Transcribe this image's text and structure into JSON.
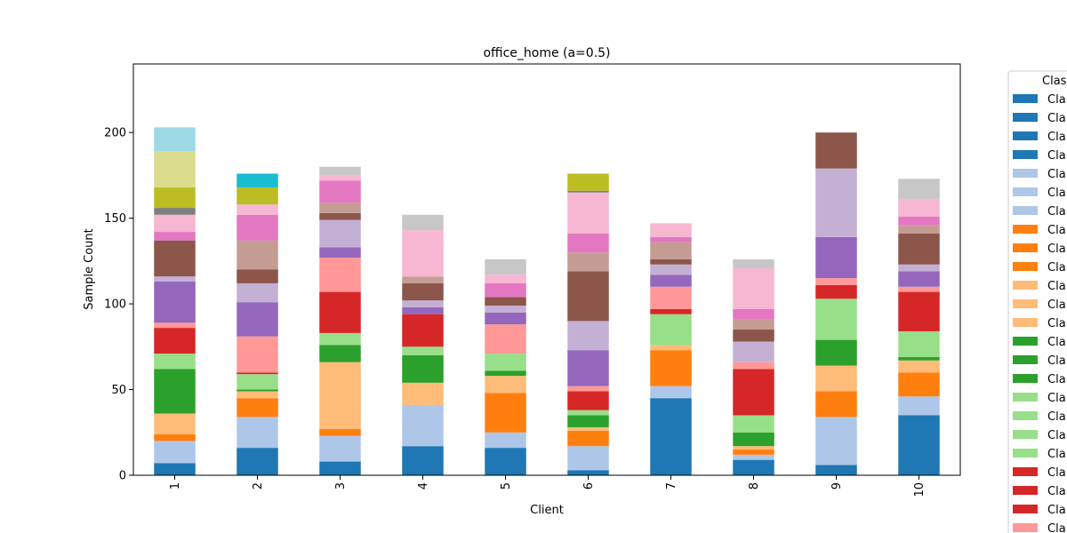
{
  "chart_data": {
    "type": "bar",
    "stacked": true,
    "title": "office_home (a=0.5)",
    "xlabel": "Client",
    "ylabel": "Sample Count",
    "ylim": [
      0,
      240
    ],
    "yticks": [
      0,
      50,
      100,
      150,
      200
    ],
    "categories": [
      "1",
      "2",
      "3",
      "4",
      "5",
      "6",
      "7",
      "8",
      "9",
      "10"
    ],
    "legend": {
      "title": "Clas",
      "position": "right-outside",
      "entries": [
        {
          "label": "Cla",
          "color": "#1f77b4"
        },
        {
          "label": "Cla",
          "color": "#1f77b4"
        },
        {
          "label": "Cla",
          "color": "#1f77b4"
        },
        {
          "label": "Cla",
          "color": "#1f77b4"
        },
        {
          "label": "Cla",
          "color": "#aec7e8"
        },
        {
          "label": "Cla",
          "color": "#aec7e8"
        },
        {
          "label": "Cla",
          "color": "#aec7e8"
        },
        {
          "label": "Cla",
          "color": "#ff7f0e"
        },
        {
          "label": "Cla",
          "color": "#ff7f0e"
        },
        {
          "label": "Cla",
          "color": "#ff7f0e"
        },
        {
          "label": "Cla",
          "color": "#ffbb78"
        },
        {
          "label": "Cla",
          "color": "#ffbb78"
        },
        {
          "label": "Cla",
          "color": "#ffbb78"
        },
        {
          "label": "Cla",
          "color": "#2ca02c"
        },
        {
          "label": "Cla",
          "color": "#2ca02c"
        },
        {
          "label": "Cla",
          "color": "#2ca02c"
        },
        {
          "label": "Cla",
          "color": "#98df8a"
        },
        {
          "label": "Cla",
          "color": "#98df8a"
        },
        {
          "label": "Cla",
          "color": "#98df8a"
        },
        {
          "label": "Cla",
          "color": "#98df8a"
        },
        {
          "label": "Cla",
          "color": "#d62728"
        },
        {
          "label": "Cla",
          "color": "#d62728"
        },
        {
          "label": "Cla",
          "color": "#d62728"
        },
        {
          "label": "Cla",
          "color": "#ff9896"
        }
      ]
    },
    "segment_colors": [
      "#1f77b4",
      "#aec7e8",
      "#ff7f0e",
      "#ffbb78",
      "#2ca02c",
      "#98df8a",
      "#d62728",
      "#ff9896",
      "#9467bd",
      "#c5b0d5",
      "#8c564b",
      "#c49c94",
      "#e377c2",
      "#f7b6d2",
      "#7f7f7f",
      "#c7c7c7",
      "#bcbd22",
      "#dbdb8d",
      "#17becf",
      "#9edae5"
    ],
    "series": [
      {
        "values": [
          7,
          16,
          8,
          17,
          16,
          3,
          45,
          9,
          6,
          35
        ]
      },
      {
        "values": [
          13,
          18,
          15,
          24,
          9,
          14,
          7,
          3,
          28,
          11
        ]
      },
      {
        "values": [
          4,
          11,
          4,
          0,
          23,
          9,
          21,
          3,
          15,
          14
        ]
      },
      {
        "values": [
          12,
          4,
          39,
          13,
          10,
          2,
          3,
          2,
          15,
          7
        ]
      },
      {
        "values": [
          26,
          1,
          10,
          16,
          3,
          7,
          0,
          8,
          15,
          2
        ]
      },
      {
        "values": [
          9,
          9,
          7,
          5,
          10,
          3,
          18,
          10,
          24,
          15
        ]
      },
      {
        "values": [
          15,
          1,
          24,
          19,
          0,
          11,
          3,
          27,
          8,
          23
        ]
      },
      {
        "values": [
          3,
          21,
          20,
          0,
          17,
          3,
          13,
          4,
          4,
          3
        ]
      },
      {
        "values": [
          24,
          20,
          6,
          4,
          7,
          21,
          7,
          0,
          24,
          9
        ]
      },
      {
        "values": [
          3,
          11,
          16,
          4,
          4,
          17,
          6,
          12,
          40,
          4
        ]
      },
      {
        "values": [
          21,
          8,
          4,
          10,
          5,
          29,
          3,
          7,
          21,
          18
        ]
      },
      {
        "values": [
          0,
          17,
          6,
          4,
          0,
          11,
          10,
          6,
          0,
          5
        ]
      },
      {
        "values": [
          5,
          15,
          13,
          0,
          8,
          11,
          3,
          6,
          0,
          5
        ]
      },
      {
        "values": [
          10,
          6,
          3,
          27,
          5,
          24,
          8,
          24,
          0,
          10
        ]
      },
      {
        "values": [
          4,
          0,
          0,
          0,
          0,
          1,
          0,
          0,
          0,
          0
        ]
      },
      {
        "values": [
          0,
          0,
          5,
          9,
          9,
          0,
          0,
          5,
          0,
          12
        ]
      },
      {
        "values": [
          12,
          10,
          0,
          0,
          0,
          10,
          0,
          0,
          0,
          0
        ]
      },
      {
        "values": [
          21,
          0,
          0,
          0,
          0,
          0,
          0,
          0,
          0,
          0
        ]
      },
      {
        "values": [
          0,
          8,
          0,
          0,
          0,
          0,
          0,
          0,
          0,
          0
        ]
      },
      {
        "values": [
          14,
          0,
          0,
          0,
          0,
          0,
          0,
          0,
          0,
          0
        ]
      }
    ]
  }
}
